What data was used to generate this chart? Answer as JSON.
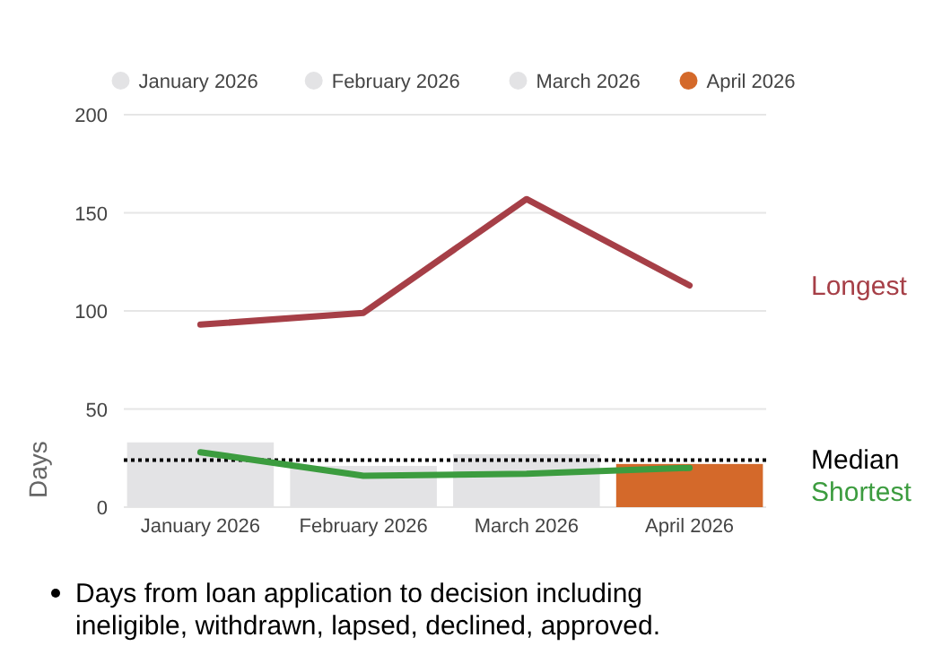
{
  "chart_data": {
    "type": "bar",
    "categories": [
      "January 2026",
      "February 2026",
      "March 2026",
      "April 2026"
    ],
    "ylabel": "Days",
    "ylim": [
      0,
      200
    ],
    "yticks": [
      0,
      50,
      100,
      150,
      200
    ],
    "grid": "y",
    "legend": "top",
    "series": [
      {
        "name": "January 2026",
        "color": "#e3e3e5",
        "values": [
          33,
          null,
          null,
          null
        ]
      },
      {
        "name": "February 2026",
        "color": "#e3e3e5",
        "values": [
          null,
          21,
          null,
          null
        ]
      },
      {
        "name": "March 2026",
        "color": "#e3e3e5",
        "values": [
          null,
          null,
          27,
          null
        ]
      },
      {
        "name": "April 2026",
        "color": "#d4692a",
        "values": [
          null,
          null,
          null,
          22
        ]
      },
      {
        "type": "line",
        "name": "Longest",
        "color": "#a63f47",
        "values": [
          93,
          99,
          157,
          113
        ]
      },
      {
        "type": "line",
        "name": "Shortest",
        "color": "#3c9c3f",
        "values": [
          28,
          16,
          17,
          20
        ]
      }
    ],
    "ref_lines": [
      {
        "axis": "y",
        "value": 24,
        "label": "Median",
        "color": "#000000",
        "line_style": "dotted"
      }
    ],
    "annotations": [
      "Days from loan application to decision including ineligible, withdrawn, lapsed, declined, approved."
    ]
  }
}
